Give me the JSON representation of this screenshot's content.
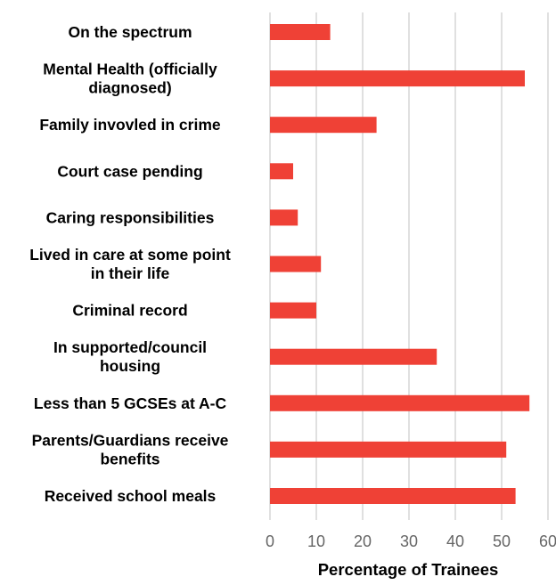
{
  "chart_data": {
    "type": "bar",
    "orientation": "horizontal",
    "categories": [
      "On the spectrum",
      "Mental Health (officially diagnosed)",
      "Family invovled in crime",
      "Court case pending",
      "Caring responsibilities",
      "Lived in care at some point in their life",
      "Criminal record",
      "In supported/council housing",
      "Less than 5 GCSEs at A-C",
      "Parents/Guardians receive benefits",
      "Received school meals"
    ],
    "category_lines": [
      [
        "On the spectrum"
      ],
      [
        "Mental Health (officially",
        "diagnosed)"
      ],
      [
        "Family invovled in crime"
      ],
      [
        "Court case pending"
      ],
      [
        "Caring responsibilities"
      ],
      [
        "Lived in care at some point",
        "in their life"
      ],
      [
        "Criminal record"
      ],
      [
        "In supported/council",
        "housing"
      ],
      [
        "Less than 5 GCSEs at A-C"
      ],
      [
        "Parents/Guardians receive",
        "benefits"
      ],
      [
        "Received school meals"
      ]
    ],
    "values": [
      13,
      55,
      23,
      5,
      6,
      11,
      10,
      36,
      56,
      51,
      53
    ],
    "xlabel": "Percentage of Trainees",
    "xlim": [
      0,
      60
    ],
    "xticks": [
      0,
      10,
      20,
      30,
      40,
      50,
      60
    ],
    "grid": "vertical",
    "legend": "none",
    "colors": {
      "bar": "#ef4136",
      "grid": "#d9d9d9",
      "tick_text": "#666666",
      "label_text": "#000000"
    }
  }
}
